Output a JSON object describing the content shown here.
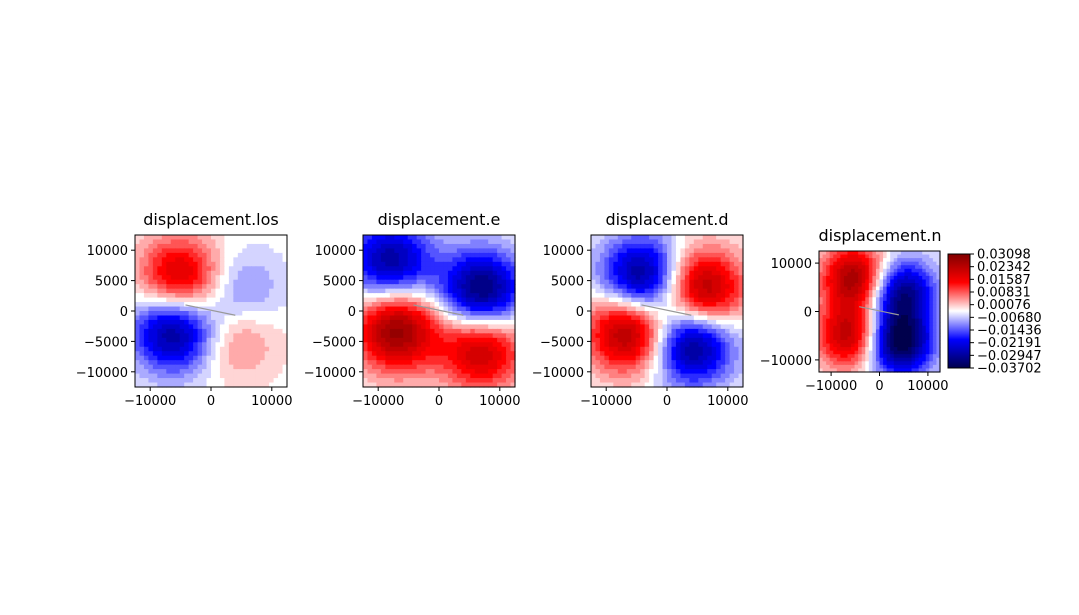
{
  "chart_data": [
    {
      "type": "heatmap",
      "title": "displacement.los",
      "xticks": [
        "−10000",
        "0",
        "10000"
      ],
      "yticks": [
        "10000",
        "5000",
        "0",
        "−5000",
        "−10000"
      ],
      "xlim": [
        -12500,
        12500
      ],
      "ylim": [
        -12500,
        12500
      ],
      "colormap": "seismic",
      "pattern": {
        "amp": 0.035,
        "main": 1,
        "rot": -20
      },
      "lobes": [
        {
          "x": -5000,
          "y": 5000,
          "v": 0.028
        },
        {
          "x": -6000,
          "y": -3000,
          "v": -0.032
        },
        {
          "x": 4500,
          "y": 2500,
          "v": -0.012
        },
        {
          "x": 4000,
          "y": -4000,
          "v": 0.012
        }
      ]
    },
    {
      "type": "heatmap",
      "title": "displacement.e",
      "xticks": [
        "−10000",
        "0",
        "10000"
      ],
      "yticks": [
        "10000",
        "5000",
        "0",
        "−5000",
        "−10000"
      ],
      "xlim": [
        -12500,
        12500
      ],
      "ylim": [
        -12500,
        12500
      ],
      "colormap": "seismic",
      "pattern": {
        "amp": 0.035,
        "main": 0,
        "rot": -20
      },
      "lobes": [
        {
          "x": -8000,
          "y": 8000,
          "v": -0.028
        },
        {
          "x": 7000,
          "y": 3000,
          "v": -0.034
        },
        {
          "x": -7000,
          "y": -3000,
          "v": 0.033
        },
        {
          "x": 7000,
          "y": -6000,
          "v": 0.028
        }
      ]
    },
    {
      "type": "heatmap",
      "title": "displacement.d",
      "xticks": [
        "−10000",
        "0",
        "10000"
      ],
      "yticks": [
        "10000",
        "5000",
        "0",
        "−5000",
        "−10000"
      ],
      "xlim": [
        -12500,
        12500
      ],
      "ylim": [
        -12500,
        12500
      ],
      "colormap": "seismic",
      "pattern": {
        "amp": 0.03,
        "main": 2,
        "rot": -20
      },
      "lobes": [
        {
          "x": -4000,
          "y": 5000,
          "v": -0.03
        },
        {
          "x": 5500,
          "y": 3000,
          "v": 0.03
        },
        {
          "x": -6000,
          "y": -3000,
          "v": 0.03
        },
        {
          "x": 4000,
          "y": -5000,
          "v": -0.03
        }
      ]
    },
    {
      "type": "heatmap",
      "title": "displacement.n",
      "xticks": [
        "−10000",
        "0",
        "10000"
      ],
      "yticks": [
        "10000",
        "0",
        "−10000"
      ],
      "xlim": [
        -12500,
        12500
      ],
      "ylim": [
        -12500,
        12500
      ],
      "colormap": "seismic",
      "pattern": {
        "amp": 0.035,
        "main": 2,
        "rot": -20
      },
      "lobes": [
        {
          "x": -5000,
          "y": 7000,
          "v": 0.031
        },
        {
          "x": 4500,
          "y": 4000,
          "v": -0.03
        },
        {
          "x": -6000,
          "y": -5000,
          "v": 0.028
        },
        {
          "x": 4000,
          "y": -6500,
          "v": -0.037
        }
      ],
      "colorbar": {
        "min": -0.03702,
        "max": 0.03098,
        "ticks": [
          "0.03098",
          "0.02342",
          "0.01587",
          "0.00831",
          "0.00076",
          "−0.00680",
          "−0.01436",
          "−0.02191",
          "−0.02947",
          "−0.03702"
        ]
      }
    }
  ],
  "colors": {
    "dark_red": "#800000",
    "red": "#ff0000",
    "white": "#ffffff",
    "blue": "#0000ff",
    "dark_blue": "#00004c",
    "fault_line": "#999999",
    "axes": "#000000"
  }
}
